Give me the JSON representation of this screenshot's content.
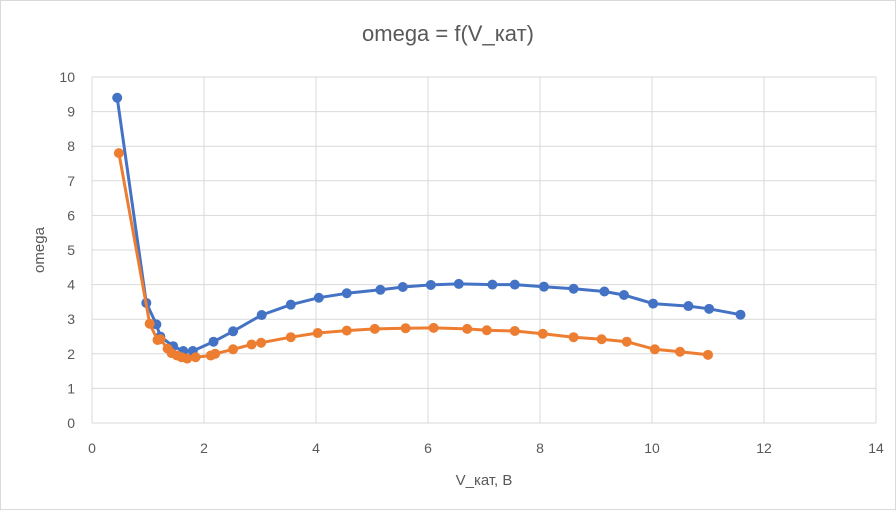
{
  "chart_data": {
    "type": "line",
    "title": "omega = f(V_кат)",
    "xlabel": "V_кат, В",
    "ylabel": "omega",
    "xlim": [
      0,
      14
    ],
    "ylim": [
      0,
      10
    ],
    "xticks": [
      "0",
      "2",
      "4",
      "6",
      "8",
      "10",
      "12",
      "14"
    ],
    "yticks": [
      "0",
      "1",
      "2",
      "3",
      "4",
      "5",
      "6",
      "7",
      "8",
      "9",
      "10"
    ],
    "grid": true,
    "legend": "none",
    "colors": {
      "series1": "#4472c4",
      "series2": "#ed7d31",
      "grid": "#d9d9d9",
      "text": "#595959"
    },
    "series": [
      {
        "color": "#4472c4",
        "x": [
          0.45,
          0.97,
          1.15,
          1.22,
          1.45,
          1.63,
          1.8,
          2.17,
          2.52,
          3.03,
          3.55,
          4.05,
          4.55,
          5.15,
          5.55,
          6.05,
          6.55,
          7.15,
          7.55,
          8.07,
          8.6,
          9.15,
          9.5,
          10.02,
          10.65,
          11.02,
          11.58
        ],
        "y": [
          9.4,
          3.47,
          2.85,
          2.5,
          2.22,
          2.08,
          2.08,
          2.35,
          2.65,
          3.12,
          3.42,
          3.62,
          3.75,
          3.85,
          3.93,
          3.99,
          4.02,
          4.0,
          4.0,
          3.94,
          3.88,
          3.8,
          3.7,
          3.45,
          3.38,
          3.3,
          3.13
        ]
      },
      {
        "color": "#ed7d31",
        "x": [
          0.48,
          1.03,
          1.17,
          1.22,
          1.35,
          1.42,
          1.52,
          1.6,
          1.7,
          1.85,
          2.12,
          2.2,
          2.52,
          2.85,
          3.02,
          3.55,
          4.03,
          4.55,
          5.05,
          5.6,
          6.1,
          6.7,
          7.05,
          7.55,
          8.05,
          8.6,
          9.1,
          9.55,
          10.05,
          10.5,
          11.0
        ],
        "y": [
          7.8,
          2.87,
          2.4,
          2.42,
          2.15,
          2.02,
          1.95,
          1.9,
          1.86,
          1.9,
          1.95,
          2.0,
          2.13,
          2.27,
          2.32,
          2.48,
          2.6,
          2.67,
          2.72,
          2.74,
          2.75,
          2.72,
          2.68,
          2.66,
          2.58,
          2.48,
          2.42,
          2.35,
          2.13,
          2.06,
          1.97
        ]
      }
    ]
  }
}
